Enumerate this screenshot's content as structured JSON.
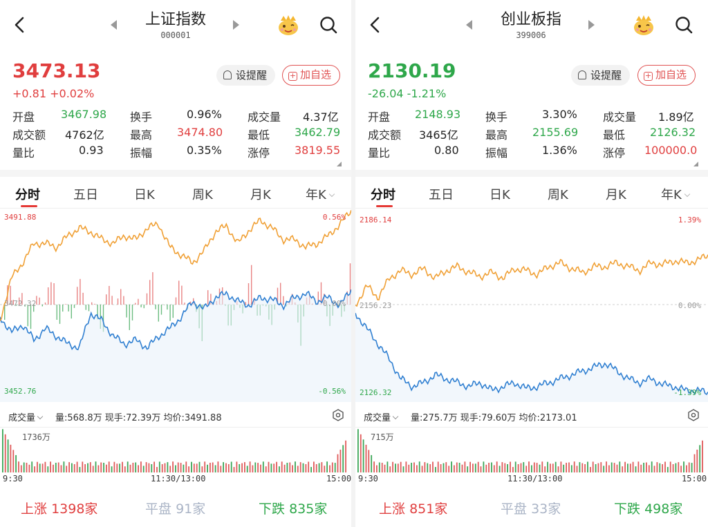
{
  "panels": [
    {
      "id": "sh",
      "title": "上证指数",
      "code": "000001",
      "price": "3473.13",
      "change": "+0.81  +0.02%",
      "trend_color": "#e03e3e",
      "alert_label": "设提醒",
      "add_label": "加自选",
      "stats": [
        [
          {
            "label": "开盘",
            "value": "3467.98",
            "color": "#2ea74a"
          },
          {
            "label": "换手",
            "value": "0.96%",
            "color": "#222"
          },
          {
            "label": "成交量",
            "value": "4.37亿",
            "color": "#222"
          }
        ],
        [
          {
            "label": "成交额",
            "value": "4762亿",
            "color": "#222"
          },
          {
            "label": "最高",
            "value": "3474.80",
            "color": "#e03e3e"
          },
          {
            "label": "最低",
            "value": "3462.79",
            "color": "#2ea74a"
          }
        ],
        [
          {
            "label": "量比",
            "value": "0.93",
            "color": "#222"
          },
          {
            "label": "振幅",
            "value": "0.35%",
            "color": "#222"
          },
          {
            "label": "涨停",
            "value": "3819.55",
            "color": "#e03e3e"
          }
        ]
      ],
      "tabs": [
        "分时",
        "五日",
        "日K",
        "周K",
        "月K",
        "年K"
      ],
      "active_tab": 0,
      "axis": {
        "top_left": "3491.88",
        "top_right": "0.56%",
        "mid_left": "3472.32",
        "mid_right": "0.00%",
        "bottom_left": "3452.76",
        "bottom_right": "-0.56%"
      },
      "volume": {
        "toggle": "成交量",
        "info": "量:568.8万  现手:72.39万  均价:3491.88",
        "max_label": "1736万"
      },
      "times": [
        "9:30",
        "11:30/13:00",
        "15:00"
      ],
      "breadth": {
        "up_label": "上涨",
        "up_count": "1398家",
        "flat_label": "平盘",
        "flat_count": "91家",
        "down_label": "下跌",
        "down_count": "835家"
      }
    },
    {
      "id": "cyb",
      "title": "创业板指",
      "code": "399006",
      "price": "2130.19",
      "change": "-26.04  -1.21%",
      "trend_color": "#2ea74a",
      "alert_label": "设提醒",
      "add_label": "加自选",
      "stats": [
        [
          {
            "label": "开盘",
            "value": "2148.93",
            "color": "#2ea74a"
          },
          {
            "label": "换手",
            "value": "3.30%",
            "color": "#222"
          },
          {
            "label": "成交量",
            "value": "1.89亿",
            "color": "#222"
          }
        ],
        [
          {
            "label": "成交额",
            "value": "3465亿",
            "color": "#222"
          },
          {
            "label": "最高",
            "value": "2155.69",
            "color": "#2ea74a"
          },
          {
            "label": "最低",
            "value": "2126.32",
            "color": "#2ea74a"
          }
        ],
        [
          {
            "label": "量比",
            "value": "0.80",
            "color": "#222"
          },
          {
            "label": "振幅",
            "value": "1.36%",
            "color": "#222"
          },
          {
            "label": "涨停",
            "value": "100000.0",
            "color": "#e03e3e"
          }
        ]
      ],
      "tabs": [
        "分时",
        "五日",
        "日K",
        "周K",
        "月K",
        "年K"
      ],
      "active_tab": 0,
      "axis": {
        "top_left": "2186.14",
        "top_right": "1.39%",
        "mid_left": "2156.23",
        "mid_right": "0.00%",
        "bottom_left": "2126.32",
        "bottom_right": "-1.39%"
      },
      "volume": {
        "toggle": "成交量",
        "info": "量:275.7万  现手:79.60万  均价:2173.01",
        "max_label": "715万"
      },
      "times": [
        "9:30",
        "11:30/13:00",
        "15:00"
      ],
      "breadth": {
        "up_label": "上涨",
        "up_count": "851家",
        "flat_label": "平盘",
        "flat_count": "33家",
        "down_label": "下跌",
        "down_count": "498家"
      }
    }
  ],
  "colors": {
    "up": "#e03e3e",
    "down": "#2ea74a",
    "flat": "#aab4c6",
    "price_line": "#2f7fd1",
    "avg_line": "#f0a035",
    "accent": "#e53935"
  }
}
